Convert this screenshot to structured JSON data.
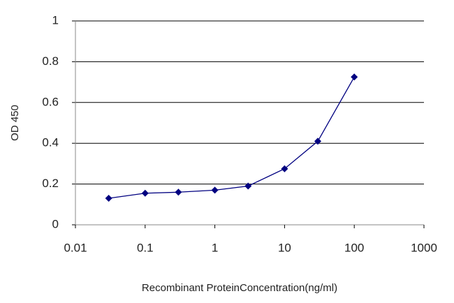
{
  "chart_data": {
    "type": "line",
    "xlabel": "Recombinant ProteinConcentration(ng/ml)",
    "ylabel": "OD 450",
    "x": [
      0.03,
      0.1,
      0.3,
      1,
      3,
      10,
      30,
      100
    ],
    "series": [
      {
        "name": "OD 450",
        "color": "#000080",
        "values": [
          0.13,
          0.155,
          0.16,
          0.17,
          0.19,
          0.275,
          0.41,
          0.725
        ]
      }
    ],
    "xscale": "log",
    "xlim": [
      0.01,
      1000
    ],
    "xticks": [
      0.01,
      0.1,
      1,
      10,
      100,
      1000
    ],
    "ylim": [
      0,
      1
    ],
    "yticks": [
      0,
      0.2,
      0.4,
      0.6,
      0.8,
      1
    ],
    "grid": true
  }
}
